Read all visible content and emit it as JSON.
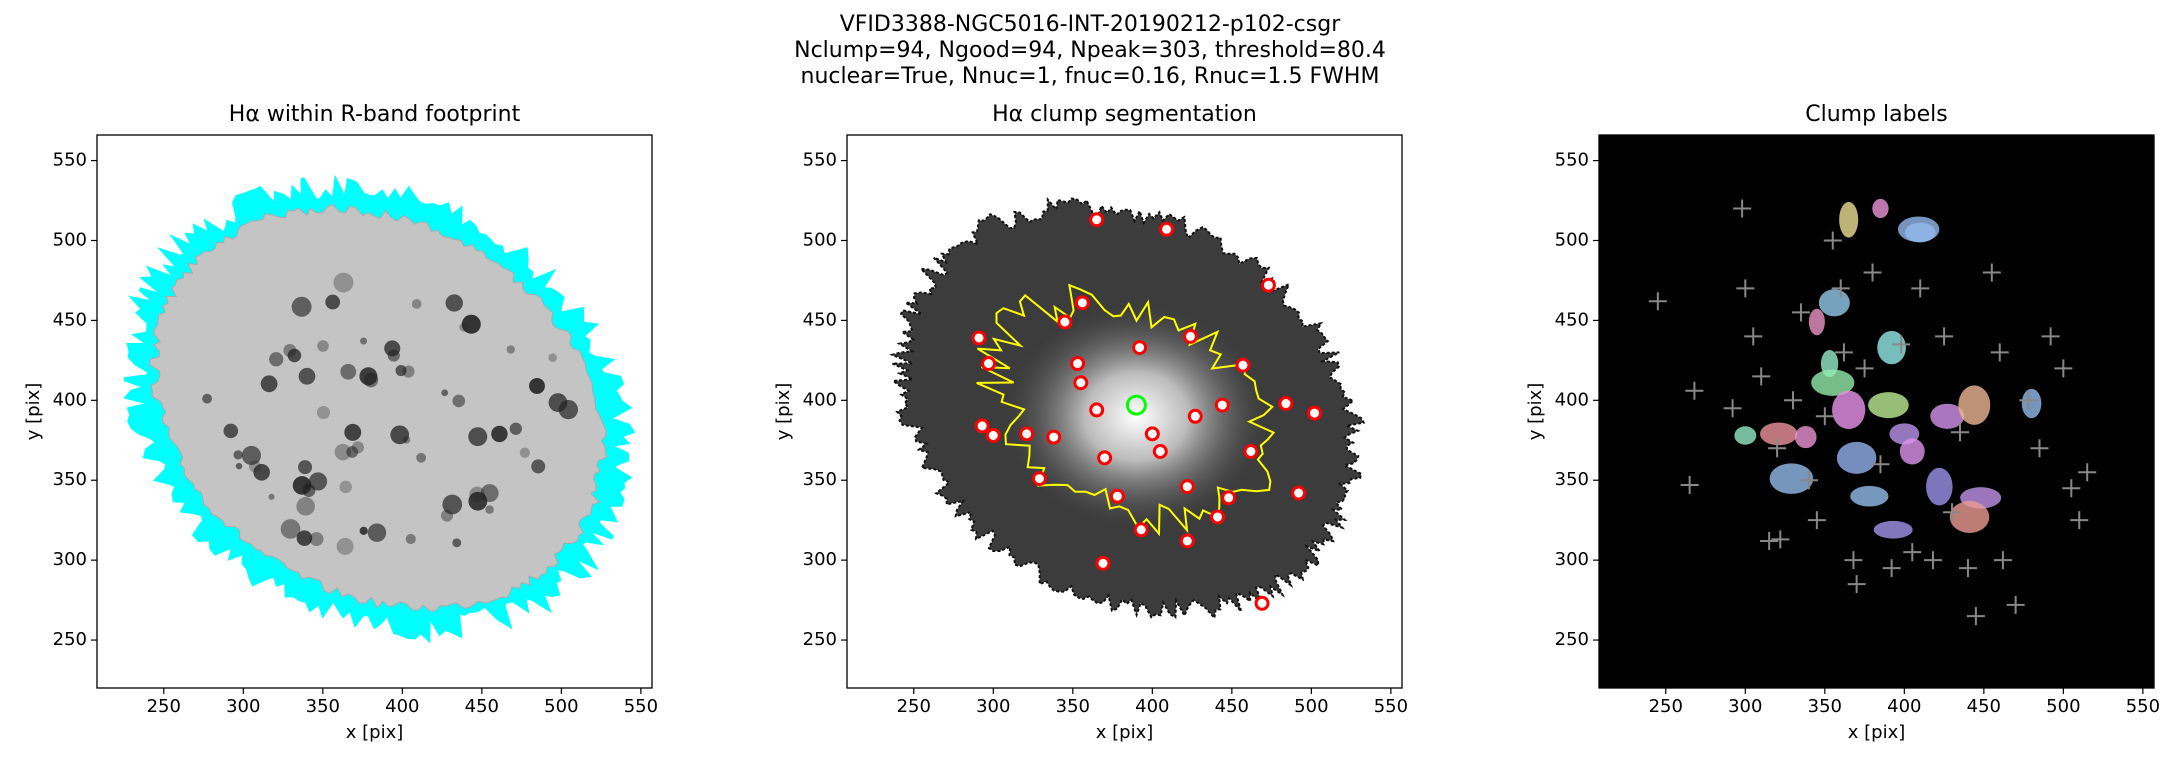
{
  "suptitle": [
    "VFID3388-NGC5016-INT-20190212-p102-csgr",
    "Nclump=94, Ngood=94, Npeak=303, threshold=80.4",
    "nuclear=True, Nnuc=1, fnuc=0.16, Rnuc=1.5 FWHM"
  ],
  "chart_data": [
    {
      "type": "image",
      "title": "Hα within R-band footprint",
      "x_label": "x [pix]",
      "y_label": "y [pix]",
      "xlim": [
        208,
        557
      ],
      "ylim": [
        220,
        566
      ],
      "xticks": [
        250,
        300,
        350,
        400,
        450,
        500,
        550
      ],
      "yticks": [
        250,
        300,
        350,
        400,
        450,
        500,
        550
      ],
      "background": "#ffffff",
      "footprint_color": "#00ffff"
    },
    {
      "type": "image",
      "title": "Hα clump segmentation",
      "x_label": "x [pix]",
      "y_label": "y [pix]",
      "xlim": [
        208,
        557
      ],
      "ylim": [
        220,
        566
      ],
      "xticks": [
        250,
        300,
        350,
        400,
        450,
        500,
        550
      ],
      "yticks": [
        250,
        300,
        350,
        400,
        450,
        500,
        550
      ],
      "background": "#ffffff",
      "contour_color": "#ffff00",
      "clump_color": "#ff0000",
      "nucleus_color": "#00ff00",
      "clumps": {
        "x": [
          365,
          409,
          473,
          291,
          297,
          356,
          345,
          424,
          392,
          353,
          355,
          457,
          293,
          300,
          321,
          338,
          365,
          400,
          427,
          444,
          484,
          502,
          370,
          405,
          462,
          329,
          378,
          422,
          448,
          492,
          393,
          422,
          441,
          369,
          469
        ],
        "y": [
          513,
          507,
          472,
          439,
          423,
          461,
          449,
          440,
          433,
          423,
          411,
          422,
          384,
          378,
          379,
          377,
          394,
          379,
          390,
          397,
          398,
          392,
          364,
          368,
          368,
          351,
          340,
          346,
          339,
          342,
          319,
          312,
          327,
          298,
          273
        ]
      },
      "nucleus": {
        "x": 390,
        "y": 397
      }
    },
    {
      "type": "image",
      "title": "Clump labels",
      "x_label": "x [pix]",
      "y_label": "y [pix]",
      "xlim": [
        208,
        557
      ],
      "ylim": [
        220,
        566
      ],
      "xticks": [
        250,
        300,
        350,
        400,
        450,
        500,
        550
      ],
      "yticks": [
        250,
        300,
        350,
        400,
        450,
        500,
        550
      ],
      "background": "#000000",
      "peak_color": "#888888",
      "clumps": {
        "x": [
          365,
          409,
          356,
          345,
          392,
          353,
          355,
          300,
          321,
          338,
          365,
          390,
          400,
          427,
          444,
          370,
          405,
          329,
          378,
          422,
          448,
          393,
          441,
          480,
          385,
          410
        ],
        "y": [
          513,
          507,
          461,
          449,
          433,
          423,
          411,
          378,
          379,
          377,
          394,
          397,
          379,
          390,
          397,
          364,
          368,
          351,
          340,
          346,
          339,
          319,
          327,
          398,
          520,
          505
        ]
      },
      "peaks": {
        "x": [
          245,
          265,
          268,
          292,
          298,
          300,
          305,
          310,
          315,
          320,
          322,
          330,
          335,
          340,
          345,
          350,
          355,
          360,
          362,
          368,
          370,
          375,
          380,
          385,
          392,
          398,
          405,
          410,
          418,
          425,
          430,
          435,
          440,
          445,
          455,
          460,
          462,
          470,
          478,
          485,
          492,
          500,
          505,
          510,
          515
        ],
        "y": [
          462,
          347,
          406,
          395,
          520,
          470,
          440,
          415,
          312,
          370,
          313,
          400,
          455,
          350,
          325,
          390,
          500,
          470,
          430,
          300,
          285,
          420,
          480,
          360,
          295,
          435,
          305,
          470,
          300,
          440,
          330,
          380,
          295,
          265,
          480,
          430,
          300,
          272,
          400,
          370,
          440,
          420,
          345,
          325,
          355
        ]
      }
    }
  ]
}
